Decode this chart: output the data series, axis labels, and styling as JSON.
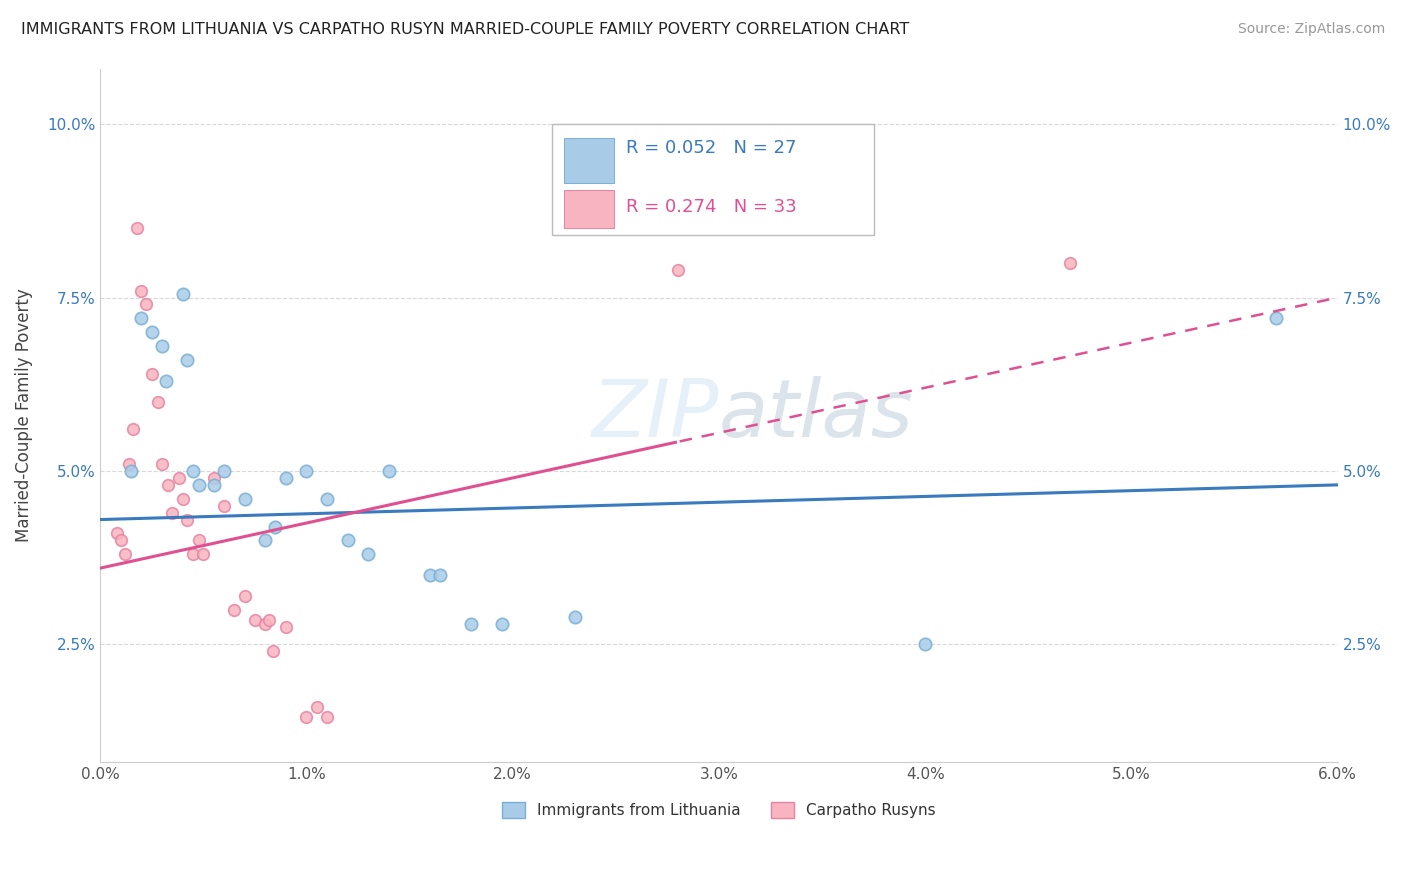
{
  "title": "IMMIGRANTS FROM LITHUANIA VS CARPATHO RUSYN MARRIED-COUPLE FAMILY POVERTY CORRELATION CHART",
  "source": "Source: ZipAtlas.com",
  "ylabel": "Married-Couple Family Poverty",
  "xlim": [
    0.0,
    0.06
  ],
  "ylim": [
    0.008,
    0.108
  ],
  "xticks": [
    0.0,
    0.01,
    0.02,
    0.03,
    0.04,
    0.05,
    0.06
  ],
  "xticklabels": [
    "0.0%",
    "1.0%",
    "2.0%",
    "3.0%",
    "4.0%",
    "5.0%",
    "6.0%"
  ],
  "yticks": [
    0.025,
    0.05,
    0.075,
    0.1
  ],
  "yticklabels": [
    "2.5%",
    "5.0%",
    "7.5%",
    "10.0%"
  ],
  "legend_labels": [
    "Immigrants from Lithuania",
    "Carpatho Rusyns"
  ],
  "legend_R": [
    0.052,
    0.274
  ],
  "legend_N": [
    27,
    33
  ],
  "blue_fill": "#a8cce8",
  "blue_edge": "#7aafd4",
  "pink_fill": "#f8b4c0",
  "pink_edge": "#e882a0",
  "blue_line_color": "#3a7abf",
  "pink_line_color": "#e05090",
  "blue_dots": [
    [
      0.0015,
      0.05
    ],
    [
      0.002,
      0.072
    ],
    [
      0.0025,
      0.07
    ],
    [
      0.003,
      0.068
    ],
    [
      0.0032,
      0.063
    ],
    [
      0.004,
      0.0755
    ],
    [
      0.0042,
      0.066
    ],
    [
      0.0045,
      0.05
    ],
    [
      0.0048,
      0.048
    ],
    [
      0.0055,
      0.048
    ],
    [
      0.006,
      0.05
    ],
    [
      0.007,
      0.046
    ],
    [
      0.008,
      0.04
    ],
    [
      0.0085,
      0.042
    ],
    [
      0.009,
      0.049
    ],
    [
      0.01,
      0.05
    ],
    [
      0.011,
      0.046
    ],
    [
      0.012,
      0.04
    ],
    [
      0.013,
      0.038
    ],
    [
      0.014,
      0.05
    ],
    [
      0.016,
      0.035
    ],
    [
      0.0165,
      0.035
    ],
    [
      0.018,
      0.028
    ],
    [
      0.0195,
      0.028
    ],
    [
      0.023,
      0.029
    ],
    [
      0.04,
      0.025
    ],
    [
      0.057,
      0.072
    ]
  ],
  "pink_dots": [
    [
      0.0008,
      0.041
    ],
    [
      0.001,
      0.04
    ],
    [
      0.0012,
      0.038
    ],
    [
      0.0014,
      0.051
    ],
    [
      0.0016,
      0.056
    ],
    [
      0.0018,
      0.085
    ],
    [
      0.002,
      0.076
    ],
    [
      0.0022,
      0.074
    ],
    [
      0.0025,
      0.064
    ],
    [
      0.0028,
      0.06
    ],
    [
      0.003,
      0.051
    ],
    [
      0.0033,
      0.048
    ],
    [
      0.0035,
      0.044
    ],
    [
      0.0038,
      0.049
    ],
    [
      0.004,
      0.046
    ],
    [
      0.0042,
      0.043
    ],
    [
      0.0045,
      0.038
    ],
    [
      0.0048,
      0.04
    ],
    [
      0.005,
      0.038
    ],
    [
      0.0055,
      0.049
    ],
    [
      0.006,
      0.045
    ],
    [
      0.0065,
      0.03
    ],
    [
      0.007,
      0.032
    ],
    [
      0.0075,
      0.0285
    ],
    [
      0.008,
      0.028
    ],
    [
      0.0082,
      0.0285
    ],
    [
      0.0084,
      0.024
    ],
    [
      0.009,
      0.0275
    ],
    [
      0.01,
      0.0145
    ],
    [
      0.0105,
      0.016
    ],
    [
      0.011,
      0.0145
    ],
    [
      0.028,
      0.079
    ],
    [
      0.047,
      0.08
    ]
  ],
  "blue_dot_size": 80,
  "pink_dot_size": 70
}
